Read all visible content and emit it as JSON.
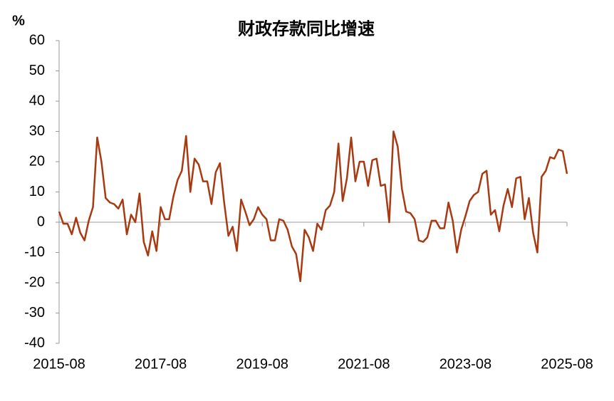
{
  "chart_data": {
    "type": "line",
    "title": "财政存款同比增速",
    "y_label": "%",
    "categories": [
      "2015-08",
      null,
      null,
      null,
      null,
      null,
      null,
      null,
      null,
      null,
      null,
      null,
      null,
      null,
      null,
      null,
      null,
      null,
      null,
      null,
      null,
      null,
      null,
      null,
      "2017-08",
      null,
      null,
      null,
      null,
      null,
      null,
      null,
      null,
      null,
      null,
      null,
      null,
      null,
      null,
      null,
      null,
      null,
      null,
      null,
      null,
      null,
      null,
      null,
      "2019-08",
      null,
      null,
      null,
      null,
      null,
      null,
      null,
      null,
      null,
      null,
      null,
      null,
      null,
      null,
      null,
      null,
      null,
      null,
      null,
      null,
      null,
      null,
      null,
      "2021-08",
      null,
      null,
      null,
      null,
      null,
      null,
      null,
      null,
      null,
      null,
      null,
      null,
      null,
      null,
      null,
      null,
      null,
      null,
      null,
      null,
      null,
      null,
      null,
      "2023-08",
      null,
      null,
      null,
      null,
      null,
      null,
      null,
      null,
      null,
      null,
      null,
      null,
      null,
      null,
      null,
      null,
      null,
      null,
      null,
      null,
      null,
      null,
      null,
      "2025-08"
    ],
    "series": [
      {
        "name": "财政存款同比增速",
        "color": "#a83a12",
        "values": [
          3.5,
          -0.5,
          -0.5,
          -4,
          1.5,
          -3.5,
          -6,
          0.5,
          5,
          28,
          20,
          8,
          6.5,
          6,
          4.5,
          7.5,
          -4,
          2.5,
          0,
          9.5,
          -6.5,
          -11,
          -3,
          -9.5,
          5,
          1,
          1,
          8.5,
          14,
          17,
          28.5,
          10,
          21,
          19,
          13.5,
          13.5,
          6,
          16.5,
          19.5,
          6.5,
          -4.5,
          -1.5,
          -9.5,
          7.5,
          3.5,
          -1,
          1,
          5,
          2.5,
          1,
          -6,
          -6,
          1,
          0.5,
          -2.5,
          -8,
          -10.5,
          -19.5,
          -2.5,
          -5,
          -9.5,
          -0.5,
          -2.5,
          4,
          5.5,
          10,
          26,
          7,
          14.5,
          28,
          13.5,
          20,
          20,
          12,
          20.5,
          21,
          12,
          12.5,
          0,
          30,
          25,
          11,
          3.5,
          3,
          1,
          -6,
          -6.5,
          -5,
          0.5,
          0.5,
          -2,
          -2,
          6.5,
          0.5,
          -10,
          -2.5,
          2,
          7,
          9,
          10,
          16,
          17,
          2.5,
          4,
          -3,
          5.5,
          11,
          5,
          14.5,
          15,
          1,
          8,
          -3.5,
          -10,
          15,
          17,
          21.5,
          21,
          24,
          23.5,
          16
        ]
      }
    ],
    "ylim": [
      -40,
      60
    ],
    "yticks": [
      -40,
      -30,
      -20,
      -10,
      0,
      10,
      20,
      30,
      40,
      50,
      60
    ]
  }
}
